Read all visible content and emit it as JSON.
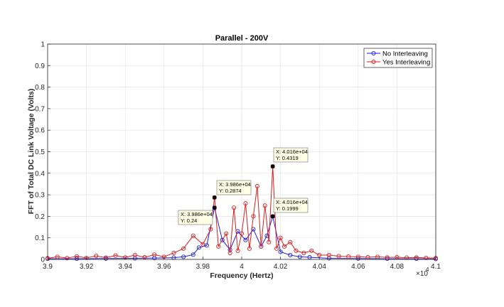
{
  "chart_data": {
    "type": "line",
    "title": "Parallel - 200V",
    "xlabel": "Frequency (Hertz)",
    "ylabel": "FFT of Total DC Link Voltage (Volts)",
    "xlim": [
      3.9,
      4.1
    ],
    "ylim": [
      0,
      1
    ],
    "x_exponent_label": "×10",
    "x_exponent_power": "4",
    "x_ticks": [
      3.9,
      3.92,
      3.94,
      3.96,
      3.98,
      4.0,
      4.02,
      4.04,
      4.06,
      4.08,
      4.1
    ],
    "x_tick_labels": [
      "3.9",
      "3.92",
      "3.94",
      "3.96",
      "3.98",
      "4",
      "4.02",
      "4.04",
      "4.06",
      "4.08",
      "4.1"
    ],
    "y_ticks": [
      0,
      0.1,
      0.2,
      0.3,
      0.4,
      0.5,
      0.6,
      0.7,
      0.8,
      0.9,
      1
    ],
    "y_tick_labels": [
      "0",
      "0.1",
      "0.2",
      "0.3",
      "0.4",
      "0.5",
      "0.6",
      "0.7",
      "0.8",
      "0.9",
      "1"
    ],
    "legend_position": "top-right",
    "grid": true,
    "series": [
      {
        "name": "No Interleaving",
        "color": "#1f1fd6",
        "x": [
          3.9,
          3.915,
          3.93,
          3.945,
          3.955,
          3.965,
          3.97,
          3.975,
          3.978,
          3.982,
          3.986,
          3.99,
          3.994,
          3.998,
          4.002,
          4.006,
          4.01,
          4.013,
          4.016,
          4.02,
          4.025,
          4.03,
          4.035,
          4.045,
          4.06,
          4.075,
          4.09,
          4.1
        ],
        "values": [
          0.003,
          0.003,
          0.004,
          0.005,
          0.006,
          0.008,
          0.012,
          0.022,
          0.055,
          0.065,
          0.24,
          0.09,
          0.045,
          0.13,
          0.09,
          0.14,
          0.06,
          0.11,
          0.1999,
          0.035,
          0.02,
          0.012,
          0.01,
          0.005,
          0.004,
          0.003,
          0.003,
          0.002
        ]
      },
      {
        "name": "Yes Interleaving",
        "color": "#d61f1f",
        "x": [
          3.9,
          3.905,
          3.91,
          3.915,
          3.92,
          3.925,
          3.93,
          3.935,
          3.94,
          3.945,
          3.95,
          3.955,
          3.96,
          3.965,
          3.97,
          3.975,
          3.98,
          3.984,
          3.986,
          3.988,
          3.992,
          3.994,
          3.996,
          3.998,
          4.0,
          4.002,
          4.004,
          4.006,
          4.008,
          4.01,
          4.012,
          4.014,
          4.016,
          4.018,
          4.02,
          4.022,
          4.025,
          4.028,
          4.032,
          4.036,
          4.04,
          4.045,
          4.05,
          4.055,
          4.06,
          4.065,
          4.07,
          4.075,
          4.08,
          4.085,
          4.09,
          4.095,
          4.1
        ],
        "values": [
          0.005,
          0.012,
          0.006,
          0.014,
          0.007,
          0.016,
          0.008,
          0.018,
          0.009,
          0.02,
          0.01,
          0.022,
          0.012,
          0.03,
          0.05,
          0.11,
          0.07,
          0.14,
          0.2874,
          0.06,
          0.12,
          0.03,
          0.24,
          0.04,
          0.12,
          0.26,
          0.05,
          0.2,
          0.34,
          0.06,
          0.25,
          0.08,
          0.4319,
          0.05,
          0.1,
          0.06,
          0.08,
          0.04,
          0.03,
          0.04,
          0.02,
          0.02,
          0.015,
          0.013,
          0.012,
          0.01,
          0.012,
          0.009,
          0.01,
          0.008,
          0.009,
          0.007,
          0.006
        ]
      }
    ],
    "annotations": [
      {
        "x_text": "X: 3.986e+04",
        "y_text": "Y: 0.24",
        "x": 3.986,
        "y": 0.24
      },
      {
        "x_text": "X: 3.986e+04",
        "y_text": "Y: 0.2874",
        "x": 3.986,
        "y": 0.2874
      },
      {
        "x_text": "X: 4.016e+04",
        "y_text": "Y: 0.4319",
        "x": 4.016,
        "y": 0.4319
      },
      {
        "x_text": "X: 4.016e+04",
        "y_text": "Y: 0.1999",
        "x": 4.016,
        "y": 0.1999
      }
    ]
  }
}
